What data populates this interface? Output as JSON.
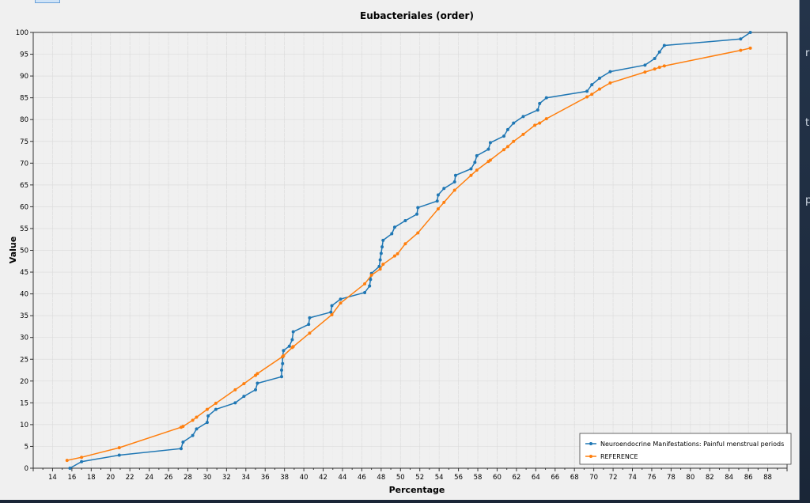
{
  "chart_data": {
    "type": "line",
    "title": "Eubacteriales (order)",
    "xlabel": "Percentage",
    "ylabel": "Value",
    "xlim": [
      12,
      90
    ],
    "ylim": [
      0,
      100
    ],
    "xticks": [
      14,
      16,
      18,
      20,
      22,
      24,
      26,
      28,
      30,
      32,
      34,
      36,
      38,
      40,
      42,
      44,
      46,
      48,
      50,
      52,
      54,
      56,
      58,
      60,
      62,
      64,
      66,
      68,
      70,
      72,
      74,
      76,
      78,
      80,
      82,
      84,
      86,
      88
    ],
    "yticks": [
      0,
      5,
      10,
      15,
      20,
      25,
      30,
      35,
      40,
      45,
      50,
      55,
      60,
      65,
      70,
      75,
      80,
      85,
      90,
      95,
      100
    ],
    "grid": true,
    "legend_position": "bottom-right",
    "series": [
      {
        "name": "Neuroendocrine Manifestations: Painful menstrual periods",
        "color": "#1f77b4",
        "points": [
          [
            15.8,
            0
          ],
          [
            17.0,
            1.5
          ],
          [
            20.9,
            3
          ],
          [
            27.3,
            4.5
          ],
          [
            27.5,
            6
          ],
          [
            28.5,
            7.5
          ],
          [
            28.9,
            9
          ],
          [
            30.0,
            10.5
          ],
          [
            30.1,
            12
          ],
          [
            30.9,
            13.5
          ],
          [
            32.9,
            15
          ],
          [
            33.8,
            16.5
          ],
          [
            35.0,
            18
          ],
          [
            35.2,
            19.5
          ],
          [
            37.7,
            21
          ],
          [
            37.7,
            22.5
          ],
          [
            37.8,
            24
          ],
          [
            37.8,
            25.5
          ],
          [
            37.9,
            27
          ],
          [
            38.5,
            28
          ],
          [
            38.8,
            29.5
          ],
          [
            38.9,
            31.3
          ],
          [
            40.5,
            33
          ],
          [
            40.6,
            34.5
          ],
          [
            42.8,
            35.8
          ],
          [
            42.9,
            37.3
          ],
          [
            43.8,
            38.8
          ],
          [
            46.3,
            40.3
          ],
          [
            46.8,
            41.8
          ],
          [
            46.9,
            43.3
          ],
          [
            47.0,
            44.7
          ],
          [
            47.8,
            46.3
          ],
          [
            47.9,
            47.8
          ],
          [
            48.0,
            49.3
          ],
          [
            48.1,
            50.8
          ],
          [
            48.2,
            52.3
          ],
          [
            49.1,
            53.8
          ],
          [
            49.4,
            55.3
          ],
          [
            50.5,
            56.8
          ],
          [
            51.7,
            58.3
          ],
          [
            51.8,
            59.8
          ],
          [
            53.8,
            61.3
          ],
          [
            53.9,
            62.7
          ],
          [
            54.5,
            64.2
          ],
          [
            55.6,
            65.7
          ],
          [
            55.7,
            67.2
          ],
          [
            57.3,
            68.7
          ],
          [
            57.7,
            70.2
          ],
          [
            57.9,
            71.7
          ],
          [
            59.1,
            73.2
          ],
          [
            59.3,
            74.7
          ],
          [
            60.7,
            76.2
          ],
          [
            61.1,
            77.7
          ],
          [
            61.7,
            79.2
          ],
          [
            62.7,
            80.7
          ],
          [
            64.2,
            82.2
          ],
          [
            64.4,
            83.7
          ],
          [
            65.1,
            85
          ],
          [
            69.3,
            86.5
          ],
          [
            69.8,
            88
          ],
          [
            70.6,
            89.5
          ],
          [
            71.7,
            91
          ],
          [
            75.3,
            92.5
          ],
          [
            76.3,
            94
          ],
          [
            76.8,
            95.5
          ],
          [
            77.3,
            97
          ],
          [
            85.2,
            98.5
          ],
          [
            86.2,
            100
          ]
        ]
      },
      {
        "name": "REFERENCE",
        "color": "#ff7f0e",
        "points": [
          [
            15.5,
            1.8
          ],
          [
            17.0,
            2.5
          ],
          [
            20.9,
            4.7
          ],
          [
            27.3,
            9.4
          ],
          [
            27.5,
            9.6
          ],
          [
            28.5,
            11.0
          ],
          [
            28.9,
            11.7
          ],
          [
            30.0,
            13.5
          ],
          [
            30.9,
            14.9
          ],
          [
            32.9,
            18.0
          ],
          [
            33.8,
            19.4
          ],
          [
            35.0,
            21.3
          ],
          [
            35.2,
            21.7
          ],
          [
            37.8,
            25.6
          ],
          [
            37.9,
            25.8
          ],
          [
            38.8,
            27.7
          ],
          [
            38.9,
            27.9
          ],
          [
            40.6,
            31.0
          ],
          [
            42.9,
            35.2
          ],
          [
            43.8,
            37.9
          ],
          [
            46.3,
            42.3
          ],
          [
            47.0,
            44.3
          ],
          [
            47.9,
            45.7
          ],
          [
            48.2,
            46.8
          ],
          [
            49.4,
            48.7
          ],
          [
            49.7,
            49.2
          ],
          [
            50.5,
            51.5
          ],
          [
            51.8,
            54.0
          ],
          [
            53.9,
            59.5
          ],
          [
            54.5,
            61.0
          ],
          [
            55.6,
            63.8
          ],
          [
            57.3,
            67.2
          ],
          [
            57.9,
            68.4
          ],
          [
            59.1,
            70.4
          ],
          [
            59.3,
            70.7
          ],
          [
            60.7,
            73.1
          ],
          [
            61.1,
            73.8
          ],
          [
            61.7,
            75.0
          ],
          [
            62.7,
            76.6
          ],
          [
            63.9,
            78.7
          ],
          [
            64.4,
            79.2
          ],
          [
            65.1,
            80.2
          ],
          [
            69.3,
            85.2
          ],
          [
            69.8,
            85.8
          ],
          [
            70.6,
            87.0
          ],
          [
            71.7,
            88.4
          ],
          [
            75.3,
            90.9
          ],
          [
            76.3,
            91.6
          ],
          [
            76.8,
            92.0
          ],
          [
            77.3,
            92.3
          ],
          [
            85.2,
            95.9
          ],
          [
            86.2,
            96.4
          ]
        ]
      }
    ]
  }
}
